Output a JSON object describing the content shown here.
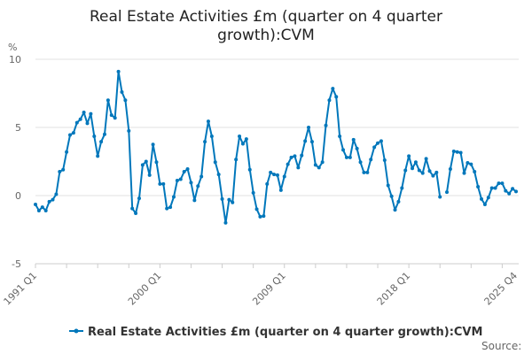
{
  "chart_data": {
    "type": "line",
    "title_lines": [
      "Real Estate Activities £m (quarter on 4 quarter",
      "growth):CVM"
    ],
    "ylabel": "%",
    "xlabel": "",
    "ylim": [
      -5,
      10
    ],
    "yticks": [
      10,
      5,
      0,
      -5
    ],
    "ytick_labels": [
      "10",
      "5",
      "0",
      "-5"
    ],
    "x_start": "1991 Q1",
    "frequency": "quarterly",
    "xtick_labels": [
      {
        "label": "1991 Q1",
        "index": 0
      },
      {
        "label": "2000 Q1",
        "index": 36
      },
      {
        "label": "2009 Q1",
        "index": 72
      },
      {
        "label": "2018 Q1",
        "index": 108
      },
      {
        "label": "2025 Q4",
        "index": 139
      }
    ],
    "grid": true,
    "legend_position": "bottom",
    "series": [
      {
        "name": "Real Estate Activities £m (quarter on 4 quarter growth):CVM",
        "color": "#0077bb",
        "values": [
          -0.65,
          -1.1,
          -0.85,
          -1.1,
          -0.45,
          -0.3,
          0.1,
          1.75,
          1.9,
          3.2,
          4.45,
          4.6,
          5.35,
          5.6,
          6.1,
          5.3,
          6.0,
          4.35,
          2.9,
          3.95,
          4.5,
          7.0,
          5.9,
          5.7,
          9.1,
          7.6,
          7.0,
          4.75,
          -0.95,
          -1.3,
          -0.2,
          2.25,
          2.5,
          1.5,
          3.75,
          2.45,
          0.85,
          0.85,
          -0.95,
          -0.85,
          -0.1,
          1.1,
          1.2,
          1.75,
          1.95,
          0.95,
          -0.35,
          0.7,
          1.4,
          3.95,
          5.45,
          4.35,
          2.45,
          1.55,
          -0.25,
          -2.0,
          -0.3,
          -0.5,
          2.65,
          4.35,
          3.8,
          4.15,
          1.9,
          0.2,
          -1.0,
          -1.55,
          -1.5,
          0.85,
          1.7,
          1.55,
          1.5,
          0.4,
          1.4,
          2.3,
          2.8,
          2.9,
          2.05,
          2.95,
          4.0,
          5.0,
          3.95,
          2.25,
          2.05,
          2.45,
          5.15,
          7.0,
          7.85,
          7.25,
          4.35,
          3.35,
          2.8,
          2.8,
          4.1,
          3.45,
          2.45,
          1.7,
          1.7,
          2.65,
          3.55,
          3.85,
          4.0,
          2.6,
          0.75,
          -0.05,
          -1.05,
          -0.45,
          0.55,
          1.85,
          2.9,
          2.0,
          2.45,
          1.85,
          1.65,
          2.7,
          1.8,
          1.45,
          1.7,
          -0.1,
          null,
          0.25,
          1.95,
          3.25,
          3.2,
          3.15,
          1.65,
          2.4,
          2.3,
          1.75,
          0.65,
          -0.25,
          -0.65,
          -0.15,
          0.55,
          0.55,
          0.9,
          0.9,
          0.35,
          0.15,
          0.5,
          0.3
        ]
      }
    ]
  },
  "source_label": "Source:"
}
